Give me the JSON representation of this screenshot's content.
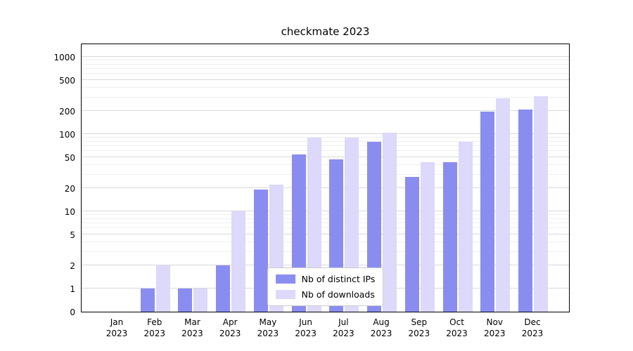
{
  "chart_data": {
    "type": "bar",
    "title": "checkmate 2023",
    "categories": [
      "Jan 2023",
      "Feb 2023",
      "Mar 2023",
      "Apr 2023",
      "May 2023",
      "Jun 2023",
      "Jul 2023",
      "Aug 2023",
      "Sep 2023",
      "Oct 2023",
      "Nov 2023",
      "Dec 2023"
    ],
    "series": [
      {
        "name": "Nb of distinct IPs",
        "color": "#8a8df0",
        "values": [
          0,
          1,
          1,
          2,
          19,
          55,
          47,
          80,
          28,
          43,
          195,
          210
        ]
      },
      {
        "name": "Nb of downloads",
        "color": "#dcd9fb",
        "values": [
          0,
          2,
          1,
          10,
          22,
          90,
          90,
          105,
          43,
          80,
          290,
          310
        ]
      }
    ],
    "yscale": "symlog",
    "yticks": [
      0,
      1,
      2,
      5,
      10,
      20,
      50,
      100,
      200,
      500,
      1000
    ],
    "minor_yticks": [
      3,
      4,
      6,
      7,
      8,
      9,
      30,
      40,
      60,
      70,
      80,
      90,
      300,
      400,
      600,
      700,
      800,
      900
    ],
    "ylim": [
      0,
      1450
    ],
    "xlabel": "",
    "ylabel": "",
    "grid": "horizontal",
    "legend_position": "lower center"
  }
}
